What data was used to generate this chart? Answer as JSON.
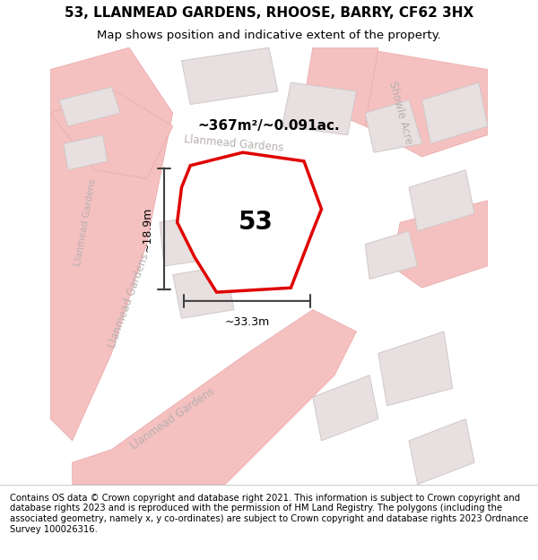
{
  "title": "53, LLANMEAD GARDENS, RHOOSE, BARRY, CF62 3HX",
  "subtitle": "Map shows position and indicative extent of the property.",
  "footer": "Contains OS data © Crown copyright and database right 2021. This information is subject to Crown copyright and database rights 2023 and is reproduced with the permission of HM Land Registry. The polygons (including the associated geometry, namely x, y co-ordinates) are subject to Crown copyright and database rights 2023 Ordnance Survey 100026316.",
  "area_label": "~367m²/~0.091ac.",
  "property_number": "53",
  "dim_width": "~33.3m",
  "dim_height": "~18.9m",
  "map_bg": "#f5f0f0",
  "road_color_light": "#f5c0c0",
  "road_color_dark": "#e8a8a8",
  "building_fill": "#e8e0e0",
  "building_stroke": "#d0c8c8",
  "property_fill": "#ffffff",
  "property_stroke": "#e00000",
  "road_text_color": "#b8b0b0",
  "dim_color": "#404040",
  "title_fontsize": 11,
  "subtitle_fontsize": 9.5
}
